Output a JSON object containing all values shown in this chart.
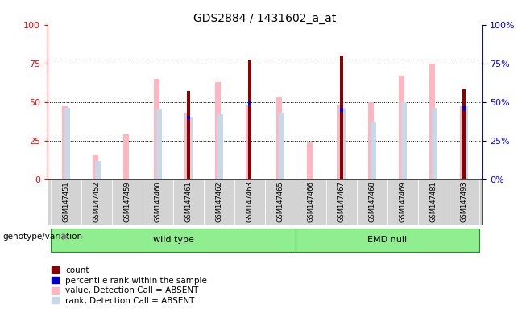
{
  "title": "GDS2884 / 1431602_a_at",
  "samples": [
    "GSM147451",
    "GSM147452",
    "GSM147459",
    "GSM147460",
    "GSM147461",
    "GSM147462",
    "GSM147463",
    "GSM147465",
    "GSM147466",
    "GSM147467",
    "GSM147468",
    "GSM147469",
    "GSM147481",
    "GSM147493"
  ],
  "n_wild": 8,
  "n_emd": 6,
  "count": [
    0,
    0,
    0,
    0,
    57,
    0,
    77,
    0,
    0,
    80,
    0,
    0,
    0,
    58
  ],
  "percentile_rank": [
    0,
    0,
    0,
    0,
    40,
    0,
    49,
    0,
    0,
    45,
    0,
    0,
    0,
    46
  ],
  "value_absent": [
    47,
    16,
    29,
    65,
    43,
    63,
    48,
    53,
    24,
    48,
    50,
    67,
    75,
    47
  ],
  "rank_absent": [
    46,
    12,
    0,
    45,
    40,
    42,
    0,
    43,
    0,
    46,
    37,
    50,
    46,
    47
  ],
  "color_count": "#8B0000",
  "color_percentile": "#0000CD",
  "color_value_absent": "#FFB6C1",
  "color_rank_absent": "#C8D8E8",
  "ylim": [
    0,
    100
  ],
  "yticks": [
    0,
    25,
    50,
    75,
    100
  ],
  "legend_items": [
    {
      "label": "count",
      "color": "#8B0000"
    },
    {
      "label": "percentile rank within the sample",
      "color": "#0000CD"
    },
    {
      "label": "value, Detection Call = ABSENT",
      "color": "#FFB6C1"
    },
    {
      "label": "rank, Detection Call = ABSENT",
      "color": "#C8D8E8"
    }
  ]
}
